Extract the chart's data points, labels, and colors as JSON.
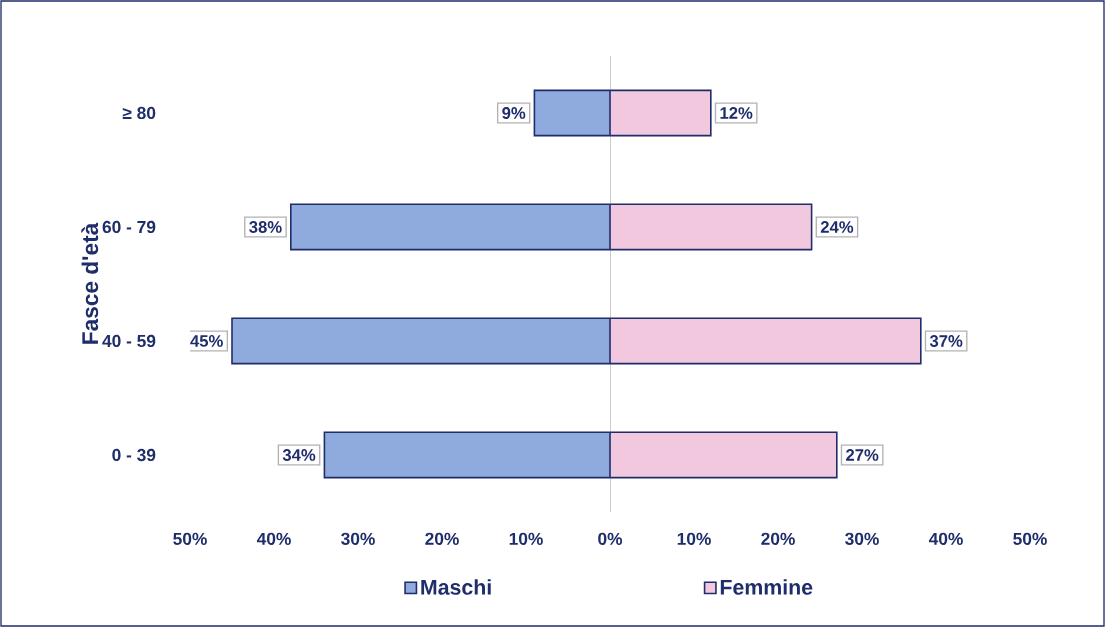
{
  "chart_data": [
    {
      "type": "bar",
      "orientation": "horizontal",
      "ylabel": "Fasce d'età",
      "categories": [
        "≥ 80",
        "60 - 79",
        "40 - 59",
        "0 - 39"
      ],
      "series": [
        {
          "name": "Maschi",
          "color": "#8faadc",
          "values": [
            9,
            38,
            45,
            34
          ],
          "value_labels": [
            "9%",
            "38%",
            "45%",
            "34%"
          ]
        }
      ],
      "xlim": [
        50,
        0
      ],
      "xticks": [
        {
          "value": 50,
          "label": "50%"
        },
        {
          "value": 40,
          "label": "40%"
        },
        {
          "value": 30,
          "label": "30%"
        },
        {
          "value": 20,
          "label": "20%"
        },
        {
          "value": 10,
          "label": "10%"
        }
      ],
      "legend": "bottom"
    },
    {
      "type": "bar",
      "orientation": "horizontal",
      "categories": [
        null,
        null,
        null,
        null
      ],
      "tick_labels": "x",
      "series": [
        {
          "name": "Femmine",
          "color": "#f2c8df",
          "values": [
            12,
            24,
            37,
            27
          ],
          "value_labels": [
            "12%",
            "24%",
            "37%",
            "27%"
          ]
        }
      ],
      "xlim": [
        0,
        50
      ],
      "xticks": [
        {
          "value": 0,
          "label": "0%"
        },
        {
          "value": 10,
          "label": "10%"
        },
        {
          "value": 20,
          "label": "20%"
        },
        {
          "value": 30,
          "label": "30%"
        },
        {
          "value": 40,
          "label": "40%"
        },
        {
          "value": 50,
          "label": "50%"
        }
      ],
      "legend": "bottom"
    }
  ]
}
